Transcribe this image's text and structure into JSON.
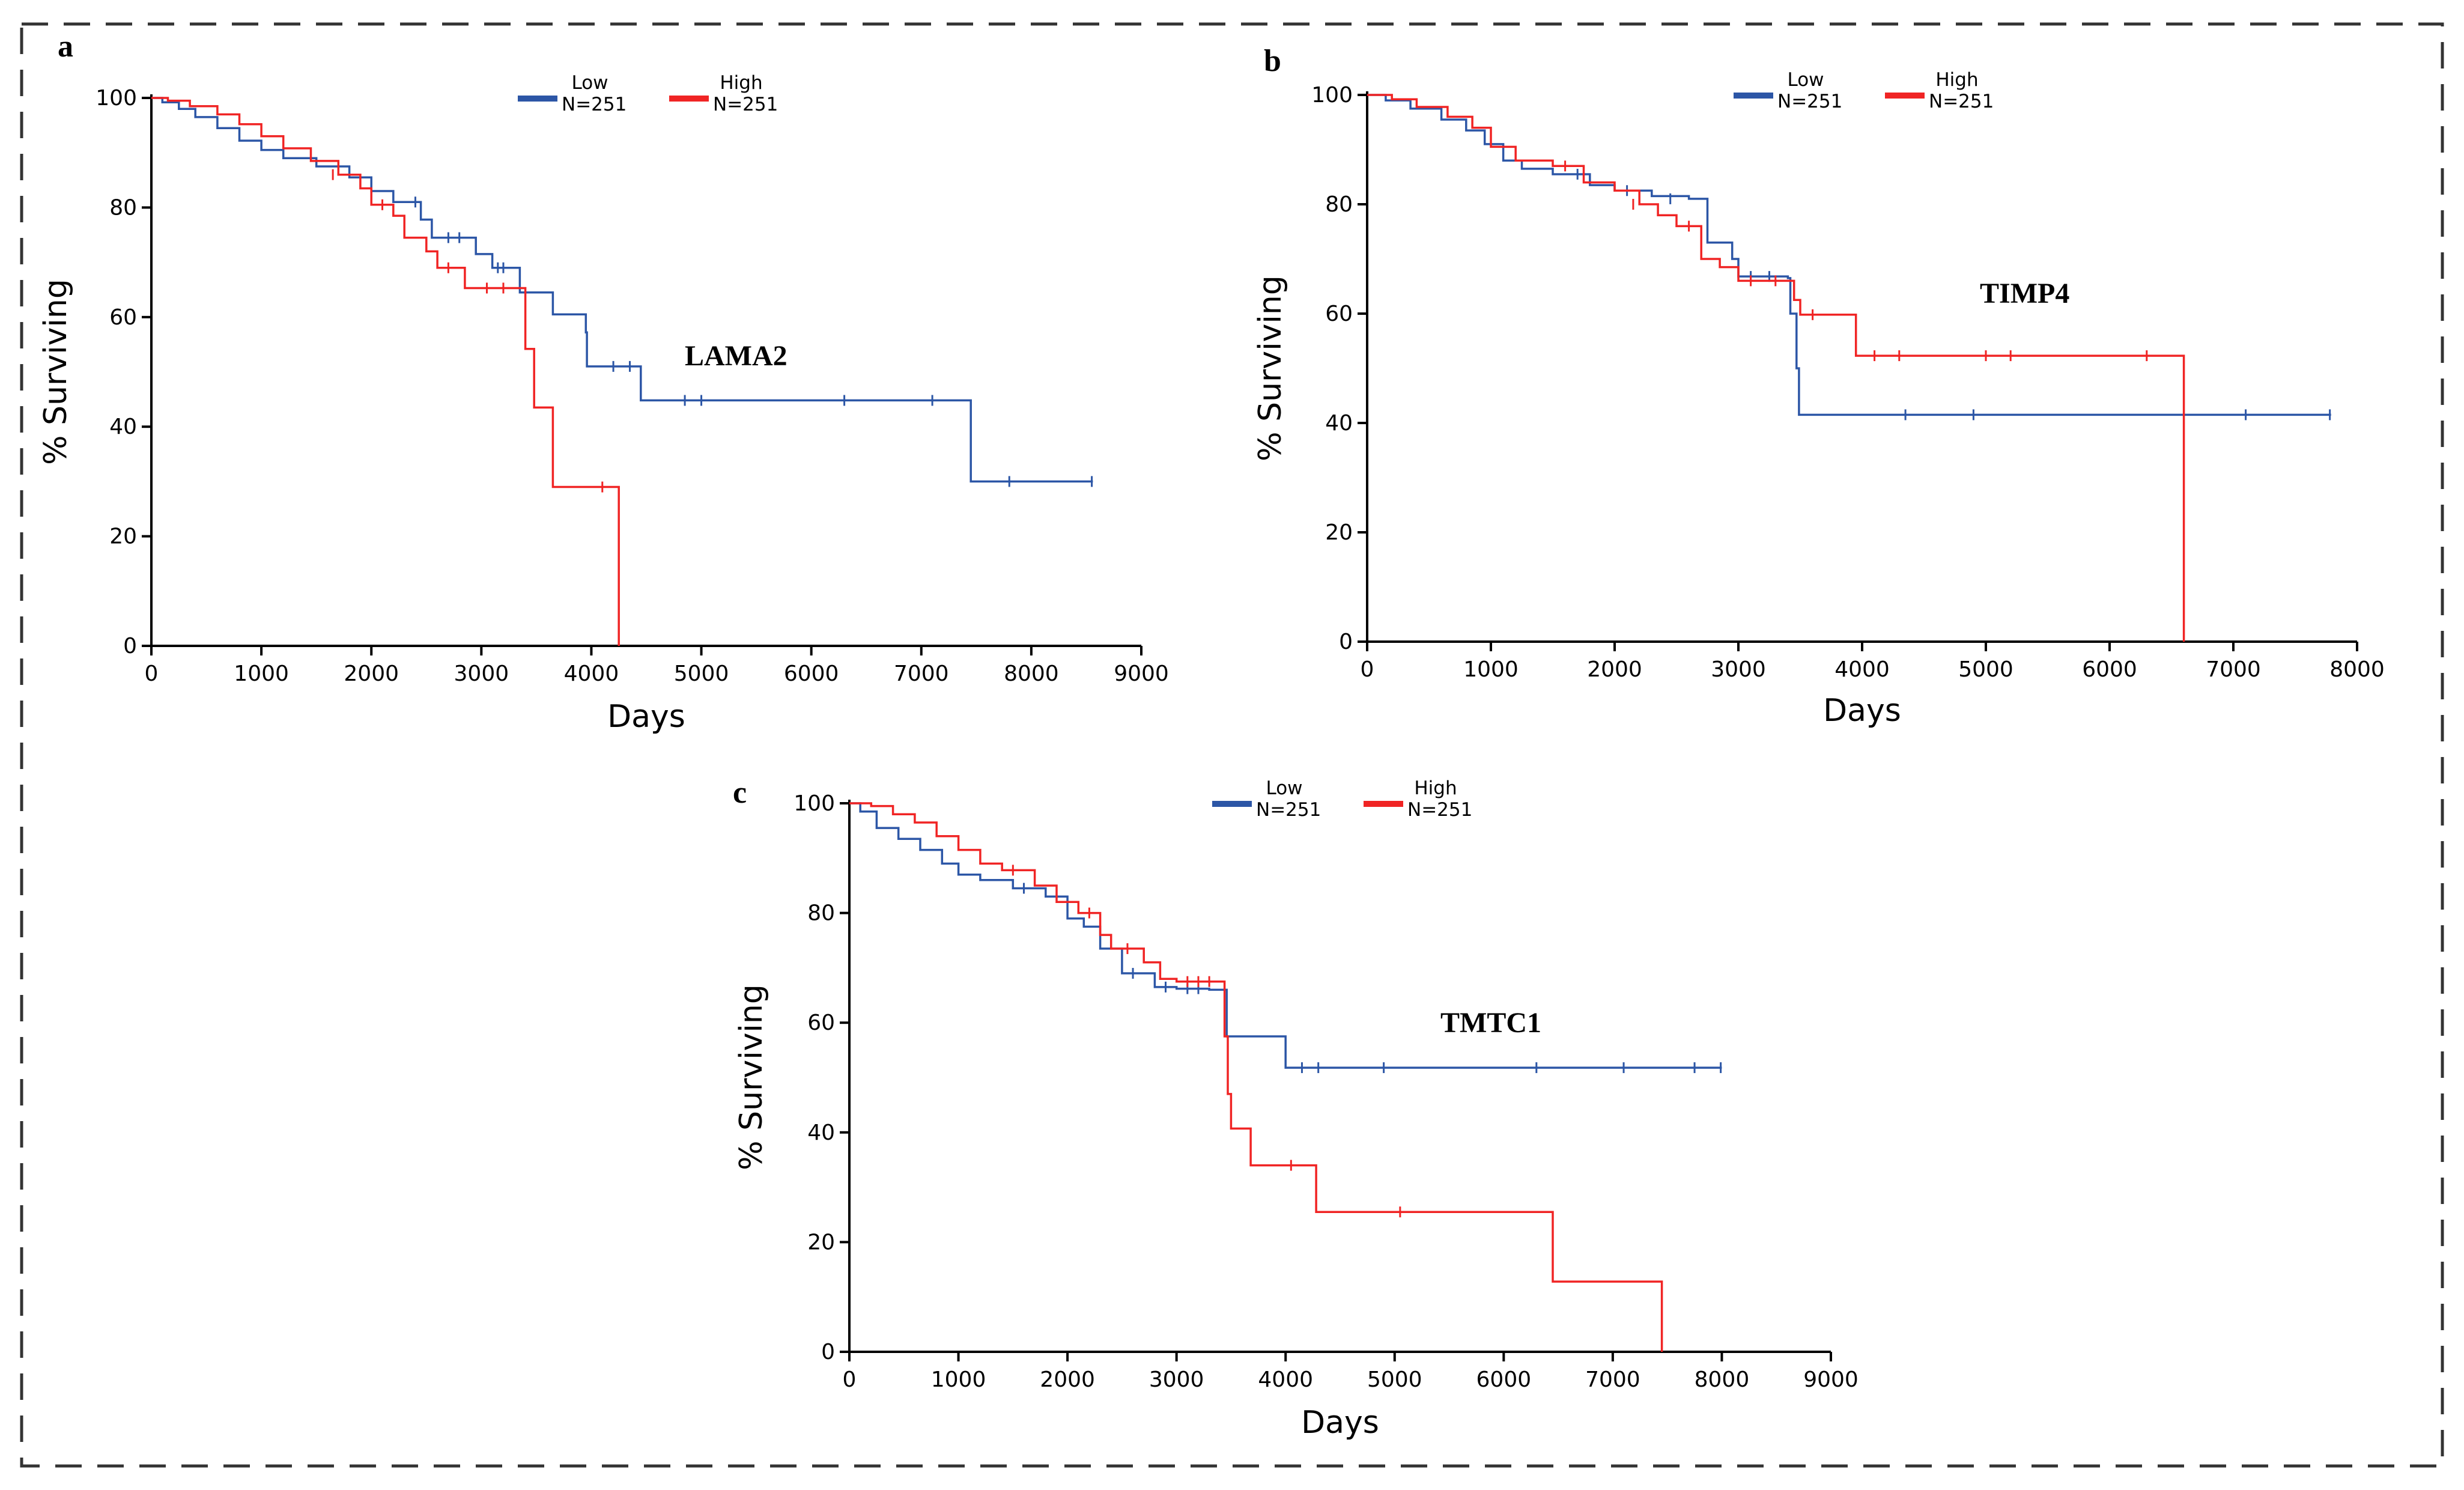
{
  "colors": {
    "low": "#2c56a6",
    "high": "#f02424",
    "frame": "#333333"
  },
  "chart_data": [
    {
      "type": "line",
      "panel_label": "a",
      "annotation": "LAMA2",
      "xlabel": "Days",
      "ylabel": "% Surviving",
      "xlim": [
        0,
        9000
      ],
      "ylim": [
        0,
        100
      ],
      "xticks": [
        "0",
        "1000",
        "2000",
        "3000",
        "4000",
        "5000",
        "6000",
        "7000",
        "8000",
        "9000"
      ],
      "yticks": [
        "0",
        "20",
        "40",
        "60",
        "80",
        "100"
      ],
      "legend": [
        {
          "name": "Low",
          "n": "N=251"
        },
        {
          "name": "High",
          "n": "N=251"
        }
      ],
      "series": [
        {
          "name": "Low",
          "n": "N=251",
          "steps": [
            [
              0,
              100
            ],
            [
              100,
              99.2
            ],
            [
              250,
              98
            ],
            [
              400,
              96.5
            ],
            [
              600,
              94.5
            ],
            [
              800,
              92.2
            ],
            [
              1000,
              90.5
            ],
            [
              1200,
              89
            ],
            [
              1500,
              87.5
            ],
            [
              1800,
              85.5
            ],
            [
              2000,
              83
            ],
            [
              2200,
              81
            ],
            [
              2450,
              77.8
            ],
            [
              2550,
              74.5
            ],
            [
              2950,
              71.5
            ],
            [
              3100,
              69
            ],
            [
              3350,
              64.5
            ],
            [
              3650,
              60.5
            ],
            [
              3950,
              57.2
            ],
            [
              3960,
              51
            ],
            [
              4450,
              44.8
            ],
            [
              7450,
              30
            ],
            [
              8560,
              30
            ]
          ],
          "censors": [
            [
              2400,
              81
            ],
            [
              2700,
              74.5
            ],
            [
              2800,
              74.5
            ],
            [
              3150,
              69
            ],
            [
              3200,
              69
            ],
            [
              4200,
              51
            ],
            [
              4350,
              51
            ],
            [
              4850,
              44.8
            ],
            [
              5000,
              44.8
            ],
            [
              6300,
              44.8
            ],
            [
              7100,
              44.8
            ],
            [
              7800,
              30
            ],
            [
              8550,
              30
            ]
          ]
        },
        {
          "name": "High",
          "n": "N=251",
          "steps": [
            [
              0,
              100
            ],
            [
              150,
              99.5
            ],
            [
              350,
              98.5
            ],
            [
              600,
              97
            ],
            [
              800,
              95.2
            ],
            [
              1000,
              93
            ],
            [
              1200,
              90.8
            ],
            [
              1450,
              88.5
            ],
            [
              1700,
              86
            ],
            [
              1900,
              83.5
            ],
            [
              2000,
              80.5
            ],
            [
              2200,
              78.5
            ],
            [
              2300,
              74.5
            ],
            [
              2500,
              72
            ],
            [
              2600,
              69
            ],
            [
              2850,
              65.3
            ],
            [
              3400,
              54.2
            ],
            [
              3480,
              43.5
            ],
            [
              3650,
              29
            ],
            [
              4250,
              29
            ],
            [
              4250,
              0
            ]
          ],
          "censors": [
            [
              1650,
              86
            ],
            [
              2100,
              80.5
            ],
            [
              2700,
              69
            ],
            [
              3050,
              65.3
            ],
            [
              3200,
              65.3
            ],
            [
              4100,
              29
            ]
          ]
        }
      ]
    },
    {
      "type": "line",
      "panel_label": "b",
      "annotation": "TIMP4",
      "xlabel": "Days",
      "ylabel": "% Surviving",
      "xlim": [
        0,
        8000
      ],
      "ylim": [
        0,
        100
      ],
      "xticks": [
        "0",
        "1000",
        "2000",
        "3000",
        "4000",
        "5000",
        "6000",
        "7000",
        "8000"
      ],
      "yticks": [
        "0",
        "20",
        "40",
        "60",
        "80",
        "100"
      ],
      "legend": [
        {
          "name": "Low",
          "n": "N=251"
        },
        {
          "name": "High",
          "n": "N=251"
        }
      ],
      "series": [
        {
          "name": "Low",
          "n": "N=251",
          "steps": [
            [
              0,
              100
            ],
            [
              150,
              99
            ],
            [
              350,
              97.5
            ],
            [
              600,
              95.5
            ],
            [
              800,
              93.5
            ],
            [
              950,
              91
            ],
            [
              1100,
              88
            ],
            [
              1250,
              86.5
            ],
            [
              1500,
              85.5
            ],
            [
              1800,
              83.5
            ],
            [
              2000,
              82.5
            ],
            [
              2300,
              81.5
            ],
            [
              2600,
              81
            ],
            [
              2750,
              73
            ],
            [
              2950,
              70
            ],
            [
              3000,
              66.8
            ],
            [
              3400,
              66.5
            ],
            [
              3420,
              60
            ],
            [
              3470,
              50
            ],
            [
              3490,
              41.5
            ],
            [
              7790,
              41.5
            ]
          ],
          "censors": [
            [
              1700,
              85.5
            ],
            [
              2100,
              82.5
            ],
            [
              2450,
              81
            ],
            [
              3100,
              66.8
            ],
            [
              3250,
              66.8
            ],
            [
              4350,
              41.5
            ],
            [
              4900,
              41.5
            ],
            [
              7100,
              41.5
            ],
            [
              7780,
              41.5
            ]
          ]
        },
        {
          "name": "High",
          "n": "N=251",
          "steps": [
            [
              0,
              100
            ],
            [
              200,
              99.2
            ],
            [
              400,
              97.8
            ],
            [
              650,
              96
            ],
            [
              850,
              94
            ],
            [
              1000,
              90.5
            ],
            [
              1200,
              88
            ],
            [
              1500,
              87
            ],
            [
              1750,
              84
            ],
            [
              2000,
              82.5
            ],
            [
              2200,
              80
            ],
            [
              2350,
              78
            ],
            [
              2500,
              76
            ],
            [
              2700,
              70
            ],
            [
              2850,
              68.5
            ],
            [
              3000,
              66
            ],
            [
              3450,
              62.5
            ],
            [
              3500,
              59.8
            ],
            [
              3950,
              52.3
            ],
            [
              6600,
              52.3
            ],
            [
              6600,
              0
            ]
          ],
          "censors": [
            [
              1600,
              87
            ],
            [
              2150,
              80
            ],
            [
              2600,
              76
            ],
            [
              3100,
              66
            ],
            [
              3300,
              66
            ],
            [
              3600,
              59.8
            ],
            [
              4100,
              52.3
            ],
            [
              4300,
              52.3
            ],
            [
              5000,
              52.3
            ],
            [
              5200,
              52.3
            ],
            [
              6300,
              52.3
            ]
          ]
        }
      ]
    },
    {
      "type": "line",
      "panel_label": "c",
      "annotation": "TMTC1",
      "xlabel": "Days",
      "ylabel": "% Surviving",
      "xlim": [
        0,
        9000
      ],
      "ylim": [
        0,
        100
      ],
      "xticks": [
        "0",
        "1000",
        "2000",
        "3000",
        "4000",
        "5000",
        "6000",
        "7000",
        "8000",
        "9000"
      ],
      "yticks": [
        "0",
        "20",
        "40",
        "60",
        "80",
        "100"
      ],
      "legend": [
        {
          "name": "Low",
          "n": "N=251"
        },
        {
          "name": "High",
          "n": "N=251"
        }
      ],
      "series": [
        {
          "name": "Low",
          "n": "N=251",
          "steps": [
            [
              0,
              100
            ],
            [
              100,
              98.5
            ],
            [
              250,
              95.5
            ],
            [
              450,
              93.5
            ],
            [
              650,
              91.5
            ],
            [
              850,
              89
            ],
            [
              1000,
              87
            ],
            [
              1200,
              86
            ],
            [
              1500,
              84.5
            ],
            [
              1800,
              83
            ],
            [
              2000,
              79
            ],
            [
              2150,
              77.5
            ],
            [
              2300,
              73.5
            ],
            [
              2500,
              69
            ],
            [
              2800,
              66.5
            ],
            [
              3000,
              66.2
            ],
            [
              3300,
              66
            ],
            [
              3460,
              57.5
            ],
            [
              3960,
              57.5
            ],
            [
              4000,
              51.8
            ],
            [
              8000,
              51.8
            ]
          ],
          "censors": [
            [
              1600,
              84.5
            ],
            [
              2600,
              69
            ],
            [
              2900,
              66.5
            ],
            [
              3100,
              66.2
            ],
            [
              3200,
              66.2
            ],
            [
              4150,
              51.8
            ],
            [
              4300,
              51.8
            ],
            [
              4900,
              51.8
            ],
            [
              6300,
              51.8
            ],
            [
              7100,
              51.8
            ],
            [
              7750,
              51.8
            ],
            [
              7990,
              51.8
            ]
          ]
        },
        {
          "name": "High",
          "n": "N=251",
          "steps": [
            [
              0,
              100
            ],
            [
              200,
              99.5
            ],
            [
              400,
              98
            ],
            [
              600,
              96.5
            ],
            [
              800,
              94
            ],
            [
              1000,
              91.5
            ],
            [
              1200,
              89
            ],
            [
              1400,
              87.8
            ],
            [
              1700,
              85
            ],
            [
              1900,
              82
            ],
            [
              2100,
              80
            ],
            [
              2300,
              76
            ],
            [
              2400,
              73.5
            ],
            [
              2700,
              71
            ],
            [
              2850,
              68
            ],
            [
              3000,
              67.5
            ],
            [
              3400,
              67.5
            ],
            [
              3440,
              57.5
            ],
            [
              3470,
              47
            ],
            [
              3500,
              40.7
            ],
            [
              3680,
              34
            ],
            [
              4280,
              25.5
            ],
            [
              6450,
              25.5
            ],
            [
              6450,
              12.8
            ],
            [
              7450,
              12.8
            ],
            [
              7450,
              0
            ]
          ],
          "censors": [
            [
              1500,
              87.8
            ],
            [
              2200,
              80
            ],
            [
              2550,
              73.5
            ],
            [
              3100,
              67.5
            ],
            [
              3200,
              67.5
            ],
            [
              3300,
              67.5
            ],
            [
              4050,
              34
            ],
            [
              5050,
              25.5
            ]
          ]
        }
      ]
    }
  ]
}
